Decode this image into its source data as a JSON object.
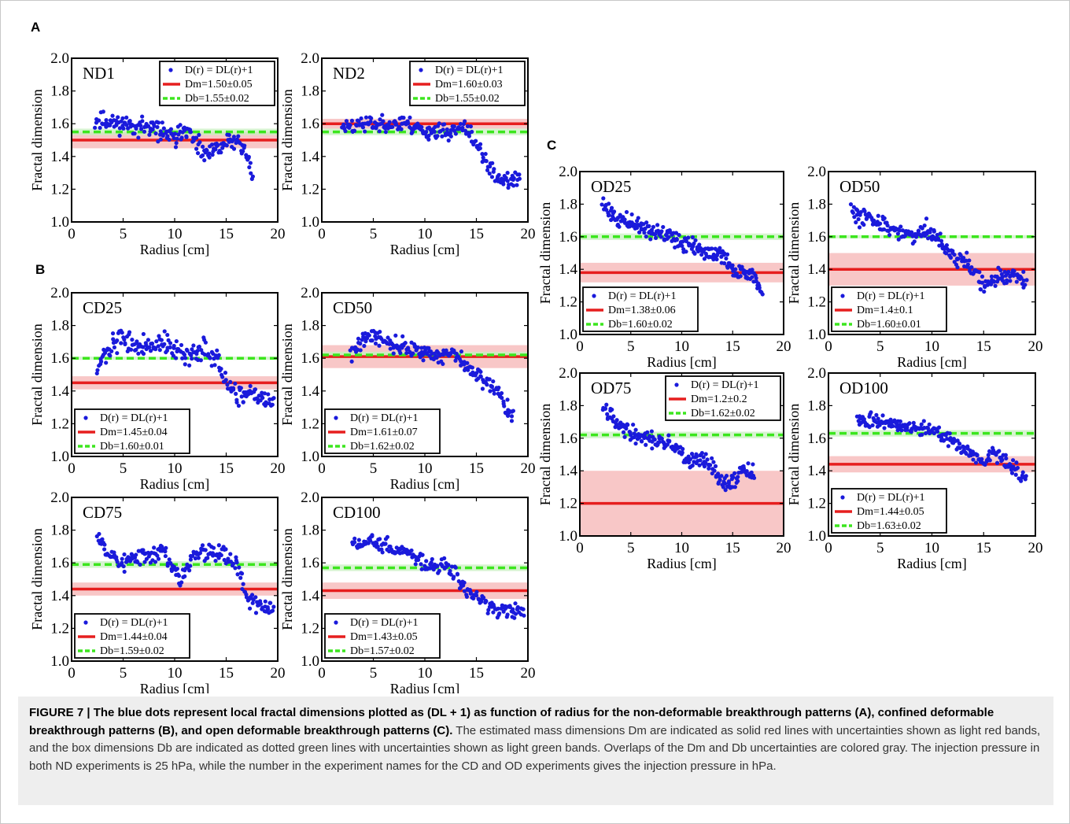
{
  "panel_letters": {
    "A": "A",
    "B": "B",
    "C": "C"
  },
  "caption": {
    "label": "FIGURE 7 | ",
    "bold": "The blue dots represent local fractal dimensions plotted as (DL + 1) as function of radius for the non-deformable breakthrough patterns (A), confined deformable breakthrough patterns (B), and open deformable breakthrough patterns (C).",
    "rest": "The estimated mass dimensions Dm are indicated as solid red lines with uncertainties shown as light red bands, and the box dimensions Db are indicated as dotted green lines with uncertainties shown as light green bands. Overlaps of the Dm and Db uncertainties are colored gray. The injection pressure in both ND experiments is 25 hPa, while the number in the experiment names for the CD and OD experiments gives the injection pressure in hPa."
  },
  "colors": {
    "dots": "#1a1adb",
    "mass_line": "#e61e1e",
    "mass_band": "#f5b4b4",
    "box_line": "#3ce61e",
    "box_band": "#c8f0c0"
  },
  "chart_data": [
    {
      "id": "ND1",
      "type": "scatter",
      "title": "ND1",
      "xlabel": "Radius [cm]",
      "ylabel": "Fractal dimension",
      "xlim": [
        0,
        20
      ],
      "ylim": [
        1.0,
        2.0
      ],
      "xticks": [
        "0",
        "5",
        "10",
        "15",
        "20"
      ],
      "yticks": [
        "1.0",
        "1.2",
        "1.4",
        "1.6",
        "1.8",
        "2.0"
      ],
      "legend_position": "top-right",
      "legend": {
        "dots": "D(r) = DL(r)+1",
        "mass": "Dm=1.50±0.05",
        "box": "Db=1.55±0.02"
      },
      "dm": 1.5,
      "dm_err": 0.05,
      "db": 1.55,
      "db_err": 0.02,
      "trend": [
        [
          2.3,
          1.62
        ],
        [
          5,
          1.6
        ],
        [
          7,
          1.58
        ],
        [
          9,
          1.55
        ],
        [
          10,
          1.5
        ],
        [
          11,
          1.58
        ],
        [
          12,
          1.48
        ],
        [
          13,
          1.4
        ],
        [
          14,
          1.44
        ],
        [
          15,
          1.48
        ],
        [
          16,
          1.5
        ],
        [
          17,
          1.42
        ],
        [
          17.6,
          1.25
        ]
      ],
      "x_range": [
        2.3,
        17.6
      ],
      "n_points": 190,
      "scatter": 0.04,
      "seed": 11
    },
    {
      "id": "ND2",
      "type": "scatter",
      "title": "ND2",
      "xlabel": "Radius [cm]",
      "ylabel": "Fractal dimension",
      "xlim": [
        0,
        20
      ],
      "ylim": [
        1.0,
        2.0
      ],
      "xticks": [
        "0",
        "5",
        "10",
        "15",
        "20"
      ],
      "yticks": [
        "1.0",
        "1.2",
        "1.4",
        "1.6",
        "1.8",
        "2.0"
      ],
      "legend_position": "top-right",
      "legend": {
        "dots": "D(r) = DL(r)+1",
        "mass": "Dm=1.60±0.03",
        "box": "Db=1.55±0.02"
      },
      "dm": 1.6,
      "dm_err": 0.03,
      "db": 1.55,
      "db_err": 0.02,
      "trend": [
        [
          2,
          1.58
        ],
        [
          5,
          1.6
        ],
        [
          8,
          1.6
        ],
        [
          10,
          1.56
        ],
        [
          12,
          1.55
        ],
        [
          14,
          1.57
        ],
        [
          15,
          1.48
        ],
        [
          16,
          1.35
        ],
        [
          17,
          1.28
        ],
        [
          18,
          1.25
        ],
        [
          19,
          1.25
        ]
      ],
      "x_range": [
        2,
        19.2
      ],
      "n_points": 210,
      "scatter": 0.035,
      "seed": 23
    },
    {
      "id": "CD25",
      "type": "scatter",
      "title": "CD25",
      "xlabel": "Radius [cm]",
      "ylabel": "Fractal dimension",
      "xlim": [
        0,
        20
      ],
      "ylim": [
        1.0,
        2.0
      ],
      "xticks": [
        "0",
        "5",
        "10",
        "15",
        "20"
      ],
      "yticks": [
        "1.0",
        "1.2",
        "1.4",
        "1.6",
        "1.8",
        "2.0"
      ],
      "legend_position": "bottom-left",
      "legend": {
        "dots": "D(r) = DL(r)+1",
        "mass": "Dm=1.45±0.04",
        "box": "Db=1.60±0.01"
      },
      "dm": 1.45,
      "dm_err": 0.04,
      "db": 1.6,
      "db_err": 0.01,
      "trend": [
        [
          2.5,
          1.55
        ],
        [
          4,
          1.68
        ],
        [
          5,
          1.72
        ],
        [
          7,
          1.66
        ],
        [
          9,
          1.7
        ],
        [
          11,
          1.6
        ],
        [
          13,
          1.66
        ],
        [
          14,
          1.6
        ],
        [
          15,
          1.45
        ],
        [
          16,
          1.35
        ],
        [
          18,
          1.38
        ],
        [
          19.5,
          1.32
        ]
      ],
      "x_range": [
        2.5,
        19.6
      ],
      "n_points": 200,
      "scatter": 0.045,
      "seed": 37
    },
    {
      "id": "CD50",
      "type": "scatter",
      "title": "CD50",
      "xlabel": "Radius [cm]",
      "ylabel": "Fractal dimension",
      "xlim": [
        0,
        20
      ],
      "ylim": [
        1.0,
        2.0
      ],
      "xticks": [
        "0",
        "5",
        "10",
        "15",
        "20"
      ],
      "yticks": [
        "1.0",
        "1.2",
        "1.4",
        "1.6",
        "1.8",
        "2.0"
      ],
      "legend_position": "bottom-left",
      "legend": {
        "dots": "D(r) = DL(r)+1",
        "mass": "Dm=1.61±0.07",
        "box": "Db=1.62±0.02"
      },
      "dm": 1.61,
      "dm_err": 0.07,
      "db": 1.62,
      "db_err": 0.02,
      "trend": [
        [
          2.8,
          1.62
        ],
        [
          4,
          1.72
        ],
        [
          5,
          1.74
        ],
        [
          7,
          1.68
        ],
        [
          9,
          1.65
        ],
        [
          11,
          1.62
        ],
        [
          13,
          1.62
        ],
        [
          14,
          1.55
        ],
        [
          15,
          1.5
        ],
        [
          16,
          1.45
        ],
        [
          17,
          1.4
        ],
        [
          18.5,
          1.25
        ]
      ],
      "x_range": [
        2.8,
        18.6
      ],
      "n_points": 200,
      "scatter": 0.035,
      "seed": 41
    },
    {
      "id": "CD75",
      "type": "scatter",
      "title": "CD75",
      "xlabel": "Radius [cm]",
      "ylabel": "Fractal dimension",
      "xlim": [
        0,
        20
      ],
      "ylim": [
        1.0,
        2.0
      ],
      "xticks": [
        "0",
        "5",
        "10",
        "15",
        "20"
      ],
      "yticks": [
        "1.0",
        "1.2",
        "1.4",
        "1.6",
        "1.8",
        "2.0"
      ],
      "legend_position": "bottom-left",
      "legend": {
        "dots": "D(r) = DL(r)+1",
        "mass": "Dm=1.44±0.04",
        "box": "Db=1.59±0.02"
      },
      "dm": 1.44,
      "dm_err": 0.04,
      "db": 1.59,
      "db_err": 0.02,
      "trend": [
        [
          2.5,
          1.8
        ],
        [
          3.5,
          1.66
        ],
        [
          5,
          1.6
        ],
        [
          7,
          1.64
        ],
        [
          9,
          1.68
        ],
        [
          10.5,
          1.48
        ],
        [
          12,
          1.66
        ],
        [
          14,
          1.68
        ],
        [
          16,
          1.6
        ],
        [
          17,
          1.4
        ],
        [
          18,
          1.35
        ],
        [
          19.5,
          1.3
        ]
      ],
      "x_range": [
        2.5,
        19.6
      ],
      "n_points": 200,
      "scatter": 0.04,
      "seed": 53
    },
    {
      "id": "CD100",
      "type": "scatter",
      "title": "CD100",
      "xlabel": "Radius [cm]",
      "ylabel": "Fractal dimension",
      "xlim": [
        0,
        20
      ],
      "ylim": [
        1.0,
        2.0
      ],
      "xticks": [
        "0",
        "5",
        "10",
        "15",
        "20"
      ],
      "yticks": [
        "1.0",
        "1.2",
        "1.4",
        "1.6",
        "1.8",
        "2.0"
      ],
      "legend_position": "bottom-left",
      "legend": {
        "dots": "D(r) = DL(r)+1",
        "mass": "Dm=1.43±0.05",
        "box": "Db=1.57±0.02"
      },
      "dm": 1.43,
      "dm_err": 0.05,
      "db": 1.57,
      "db_err": 0.02,
      "trend": [
        [
          3,
          1.74
        ],
        [
          5,
          1.72
        ],
        [
          7,
          1.68
        ],
        [
          9,
          1.65
        ],
        [
          10,
          1.6
        ],
        [
          12,
          1.58
        ],
        [
          13,
          1.55
        ],
        [
          14,
          1.42
        ],
        [
          15,
          1.38
        ],
        [
          16,
          1.36
        ],
        [
          17,
          1.3
        ],
        [
          19.5,
          1.3
        ]
      ],
      "x_range": [
        3,
        19.6
      ],
      "n_points": 200,
      "scatter": 0.035,
      "seed": 67
    },
    {
      "id": "OD25",
      "type": "scatter",
      "title": "OD25",
      "xlabel": "Radius [cm]",
      "ylabel": "Fractal dimension",
      "xlim": [
        0,
        20
      ],
      "ylim": [
        1.0,
        2.0
      ],
      "xticks": [
        "0",
        "5",
        "10",
        "15",
        "20"
      ],
      "yticks": [
        "1.0",
        "1.2",
        "1.4",
        "1.6",
        "1.8",
        "2.0"
      ],
      "legend_position": "bottom-left",
      "legend": {
        "dots": "D(r) = DL(r)+1",
        "mass": "Dm=1.38±0.06",
        "box": "Db=1.60±0.02"
      },
      "dm": 1.38,
      "dm_err": 0.06,
      "db": 1.6,
      "db_err": 0.02,
      "trend": [
        [
          2.2,
          1.8
        ],
        [
          4,
          1.7
        ],
        [
          6,
          1.66
        ],
        [
          8,
          1.62
        ],
        [
          10,
          1.56
        ],
        [
          12,
          1.52
        ],
        [
          14,
          1.48
        ],
        [
          15,
          1.4
        ],
        [
          16,
          1.38
        ],
        [
          17,
          1.36
        ],
        [
          17.8,
          1.26
        ]
      ],
      "x_range": [
        2.2,
        17.9
      ],
      "n_points": 220,
      "scatter": 0.035,
      "seed": 71
    },
    {
      "id": "OD50",
      "type": "scatter",
      "title": "OD50",
      "xlabel": "Radius [cm]",
      "ylabel": "Fractal dimension",
      "xlim": [
        0,
        20
      ],
      "ylim": [
        1.0,
        2.0
      ],
      "xticks": [
        "0",
        "5",
        "10",
        "15",
        "20"
      ],
      "yticks": [
        "1.0",
        "1.2",
        "1.4",
        "1.6",
        "1.8",
        "2.0"
      ],
      "legend_position": "bottom-left",
      "legend": {
        "dots": "D(r) = DL(r)+1",
        "mass": "Dm=1.4±0.1",
        "box": "Db=1.60±0.01"
      },
      "dm": 1.4,
      "dm_err": 0.1,
      "db": 1.6,
      "db_err": 0.01,
      "trend": [
        [
          2.2,
          1.76
        ],
        [
          4,
          1.7
        ],
        [
          6,
          1.66
        ],
        [
          8,
          1.62
        ],
        [
          10,
          1.64
        ],
        [
          11,
          1.55
        ],
        [
          12,
          1.48
        ],
        [
          13,
          1.45
        ],
        [
          14,
          1.4
        ],
        [
          15,
          1.3
        ],
        [
          16,
          1.34
        ],
        [
          18,
          1.36
        ],
        [
          19,
          1.32
        ]
      ],
      "x_range": [
        2.2,
        19.1
      ],
      "n_points": 220,
      "scatter": 0.04,
      "seed": 83
    },
    {
      "id": "OD75",
      "type": "scatter",
      "title": "OD75",
      "xlabel": "Radius [cm]",
      "ylabel": "Fractal dimension",
      "xlim": [
        0,
        20
      ],
      "ylim": [
        1.0,
        2.0
      ],
      "xticks": [
        "0",
        "5",
        "10",
        "15",
        "20"
      ],
      "yticks": [
        "1.0",
        "1.2",
        "1.4",
        "1.6",
        "1.8",
        "2.0"
      ],
      "legend_position": "top-right",
      "legend": {
        "dots": "D(r) = DL(r)+1",
        "mass": "Dm=1.2±0.2",
        "box": "Db=1.62±0.02"
      },
      "dm": 1.2,
      "dm_err": 0.2,
      "db": 1.62,
      "db_err": 0.02,
      "trend": [
        [
          2.3,
          1.82
        ],
        [
          4,
          1.66
        ],
        [
          6,
          1.6
        ],
        [
          8,
          1.58
        ],
        [
          9.5,
          1.54
        ],
        [
          10.5,
          1.46
        ],
        [
          12,
          1.48
        ],
        [
          13,
          1.42
        ],
        [
          14,
          1.32
        ],
        [
          15,
          1.34
        ],
        [
          16,
          1.4
        ],
        [
          17,
          1.38
        ]
      ],
      "x_range": [
        2.3,
        17.1
      ],
      "n_points": 200,
      "scatter": 0.035,
      "seed": 97
    },
    {
      "id": "OD100",
      "type": "scatter",
      "title": "OD100",
      "xlabel": "Radius [cm]",
      "ylabel": "Fractal dimension",
      "xlim": [
        0,
        20
      ],
      "ylim": [
        1.0,
        2.0
      ],
      "xticks": [
        "0",
        "5",
        "10",
        "15",
        "20"
      ],
      "yticks": [
        "1.0",
        "1.2",
        "1.4",
        "1.6",
        "1.8",
        "2.0"
      ],
      "legend_position": "bottom-left",
      "legend": {
        "dots": "D(r) = DL(r)+1",
        "mass": "Dm=1.44±0.05",
        "box": "Db=1.63±0.02"
      },
      "dm": 1.44,
      "dm_err": 0.05,
      "db": 1.63,
      "db_err": 0.02,
      "trend": [
        [
          2.8,
          1.72
        ],
        [
          5,
          1.7
        ],
        [
          7,
          1.68
        ],
        [
          9,
          1.66
        ],
        [
          10.5,
          1.64
        ],
        [
          12,
          1.58
        ],
        [
          13,
          1.55
        ],
        [
          14,
          1.5
        ],
        [
          15,
          1.44
        ],
        [
          16,
          1.52
        ],
        [
          17,
          1.46
        ],
        [
          18,
          1.42
        ],
        [
          19,
          1.34
        ]
      ],
      "x_range": [
        2.8,
        19.1
      ],
      "n_points": 210,
      "scatter": 0.03,
      "seed": 101
    }
  ]
}
